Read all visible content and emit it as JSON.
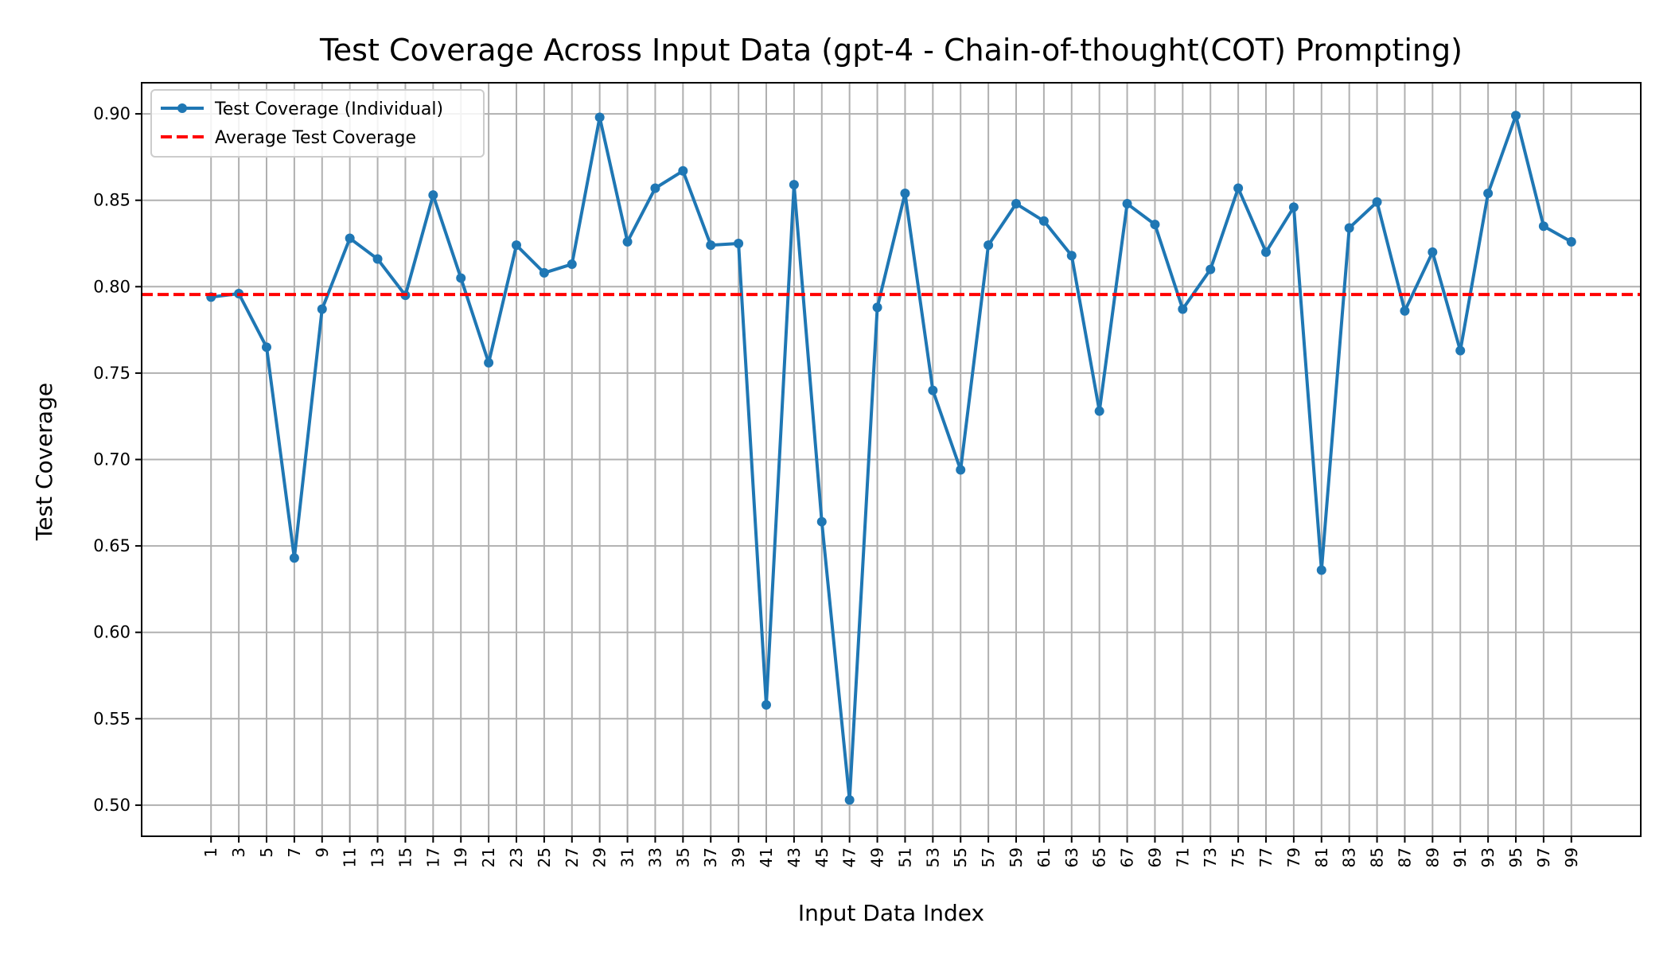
{
  "chart_data": {
    "type": "line",
    "title": "Test Coverage Across Input Data (gpt-4 - Chain-of-thought(COT) Prompting)",
    "xlabel": "Input Data Index",
    "ylabel": "Test Coverage",
    "xlim": [
      -4,
      104
    ],
    "ylim": [
      0.482,
      0.918
    ],
    "yticks": [
      0.5,
      0.55,
      0.6,
      0.65,
      0.7,
      0.75,
      0.8,
      0.85,
      0.9
    ],
    "ytick_labels": [
      "0.50",
      "0.55",
      "0.60",
      "0.65",
      "0.70",
      "0.75",
      "0.80",
      "0.85",
      "0.90"
    ],
    "xticks": [
      1,
      3,
      5,
      7,
      9,
      11,
      13,
      15,
      17,
      19,
      21,
      23,
      25,
      27,
      29,
      31,
      33,
      35,
      37,
      39,
      41,
      43,
      45,
      47,
      49,
      51,
      53,
      55,
      57,
      59,
      61,
      63,
      65,
      67,
      69,
      71,
      73,
      75,
      77,
      79,
      81,
      83,
      85,
      87,
      89,
      91,
      93,
      95,
      97,
      99
    ],
    "xtick_labels": [
      "1",
      "3",
      "5",
      "7",
      "9",
      "11",
      "13",
      "15",
      "17",
      "19",
      "21",
      "23",
      "25",
      "27",
      "29",
      "31",
      "33",
      "35",
      "37",
      "39",
      "41",
      "43",
      "45",
      "47",
      "49",
      "51",
      "53",
      "55",
      "57",
      "59",
      "61",
      "63",
      "65",
      "67",
      "69",
      "71",
      "73",
      "75",
      "77",
      "79",
      "81",
      "83",
      "85",
      "87",
      "89",
      "91",
      "93",
      "95",
      "97",
      "99"
    ],
    "grid": true,
    "legend_position": "top-left",
    "series": [
      {
        "name": "Test Coverage (Individual)",
        "color": "#1f77b4",
        "style": "solid-with-markers",
        "x": [
          1,
          3,
          5,
          7,
          9,
          11,
          13,
          15,
          17,
          19,
          21,
          23,
          25,
          27,
          29,
          31,
          33,
          35,
          37,
          39,
          41,
          43,
          45,
          47,
          49,
          51,
          53,
          55,
          57,
          59,
          61,
          63,
          65,
          67,
          69,
          71,
          73,
          75,
          77,
          79,
          81,
          83,
          85,
          87,
          89,
          91,
          93,
          95,
          97,
          99
        ],
        "values": [
          0.794,
          0.796,
          0.765,
          0.643,
          0.787,
          0.828,
          0.816,
          0.795,
          0.853,
          0.805,
          0.756,
          0.824,
          0.808,
          0.813,
          0.898,
          0.826,
          0.857,
          0.867,
          0.824,
          0.825,
          0.558,
          0.859,
          0.664,
          0.503,
          0.788,
          0.854,
          0.74,
          0.694,
          0.824,
          0.848,
          0.838,
          0.818,
          0.728,
          0.848,
          0.836,
          0.787,
          0.81,
          0.857,
          0.82,
          0.846,
          0.636,
          0.834,
          0.849,
          0.786,
          0.82,
          0.763,
          0.854,
          0.899,
          0.835,
          0.826
        ]
      },
      {
        "name": "Average Test Coverage",
        "color": "#ff0000",
        "style": "dashed",
        "y": 0.7955
      }
    ]
  }
}
